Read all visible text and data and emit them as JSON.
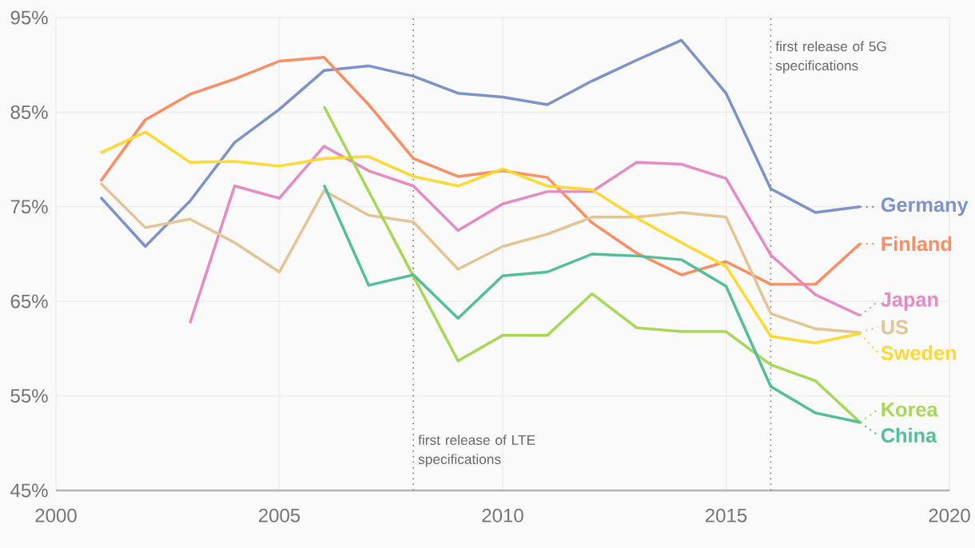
{
  "chart_data": {
    "type": "line",
    "x": [
      2001,
      2002,
      2003,
      2004,
      2005,
      2006,
      2007,
      2008,
      2009,
      2010,
      2011,
      2012,
      2013,
      2014,
      2015,
      2016,
      2017,
      2018
    ],
    "series": [
      {
        "name": "Germany",
        "color": "#7b93c8",
        "values": [
          76.0,
          70.8,
          75.6,
          81.8,
          85.3,
          89.4,
          89.9,
          88.8,
          87.0,
          86.6,
          85.8,
          88.3,
          90.5,
          92.6,
          87.0,
          76.9,
          74.4,
          75.0
        ]
      },
      {
        "name": "Finland",
        "color": "#fc8d62",
        "values": [
          77.7,
          84.2,
          86.9,
          88.5,
          90.4,
          90.8,
          85.8,
          80.1,
          78.2,
          78.8,
          78.1,
          73.3,
          70.1,
          67.8,
          69.2,
          66.8,
          66.8,
          71.1
        ]
      },
      {
        "name": "Japan",
        "color": "#e78ac3",
        "values": [
          null,
          null,
          62.7,
          77.2,
          75.9,
          81.4,
          78.8,
          77.2,
          72.5,
          75.3,
          76.6,
          76.6,
          79.7,
          79.5,
          78.0,
          69.9,
          65.7,
          63.5
        ]
      },
      {
        "name": "US",
        "color": "#e5c494",
        "values": [
          77.5,
          72.8,
          73.7,
          71.2,
          68.1,
          76.7,
          74.1,
          73.4,
          68.4,
          70.8,
          72.1,
          73.9,
          73.9,
          74.4,
          73.9,
          63.7,
          62.1,
          61.7
        ]
      },
      {
        "name": "Sweden",
        "color": "#ffd92f",
        "values": [
          80.7,
          82.9,
          79.7,
          79.8,
          79.3,
          80.1,
          80.3,
          78.2,
          77.2,
          79.0,
          77.2,
          76.8,
          73.8,
          71.2,
          68.7,
          61.3,
          60.6,
          61.6
        ]
      },
      {
        "name": "Korea",
        "color": "#a6d854",
        "x": [
          2006,
          2009,
          2010,
          2011,
          2012,
          2013,
          2014,
          2015,
          2016,
          2017,
          2018
        ],
        "values": [
          85.6,
          58.7,
          61.4,
          61.4,
          65.8,
          62.2,
          61.8,
          61.8,
          58.3,
          56.6,
          52.2
        ]
      },
      {
        "name": "China",
        "color": "#52bf9b",
        "values": [
          null,
          null,
          null,
          null,
          null,
          77.3,
          66.7,
          67.8,
          63.2,
          67.7,
          68.1,
          70.0,
          69.8,
          69.4,
          66.6,
          56.0,
          53.2,
          52.2
        ]
      }
    ],
    "xlim": [
      2000,
      2020
    ],
    "ylim": [
      45,
      95
    ],
    "xticks": [
      2000,
      2005,
      2010,
      2015,
      2020
    ],
    "yticks": [
      {
        "value": 45,
        "label": "45%"
      },
      {
        "value": 55,
        "label": "55%"
      },
      {
        "value": 65,
        "label": "65%"
      },
      {
        "value": 75,
        "label": "75%"
      },
      {
        "value": 85,
        "label": "85%"
      },
      {
        "value": 95,
        "label": "95%"
      }
    ],
    "grid": true,
    "legend": "right",
    "marker": "none",
    "line_style": "solid",
    "ref_lines": [
      {
        "axis": "x",
        "value": 2008,
        "label": "first release of LTE specifications",
        "line_style": "dotted",
        "color": "#777777"
      },
      {
        "axis": "x",
        "value": 2016,
        "label": "first release of 5G specifications",
        "line_style": "dotted",
        "color": "#777777"
      }
    ]
  }
}
